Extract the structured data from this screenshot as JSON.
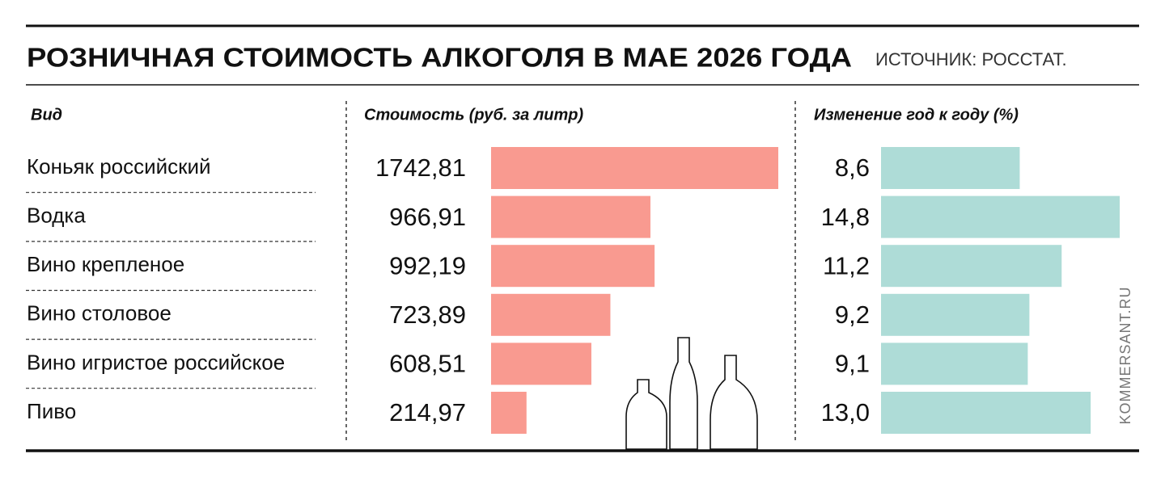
{
  "chart_data": {
    "type": "bar",
    "title": "РОЗНИЧНАЯ СТОИМОСТЬ АЛКОГОЛЯ В МАЕ 2026 ГОДА",
    "source": "ИСТОЧНИК: РОССТАТ.",
    "category_header": "Вид",
    "credit": "KOMMERSANT.RU",
    "categories": [
      "Коньяк российский",
      "Водка",
      "Вино крепленое",
      "Вино столовое",
      "Вино игристое российское",
      "Пиво"
    ],
    "series": [
      {
        "name": "Стоимость (руб. за литр)",
        "color": "#f99a90",
        "values": [
          1742.81,
          966.91,
          992.19,
          723.89,
          608.51,
          214.97
        ],
        "value_labels": [
          "1742,81",
          "966,91",
          "992,19",
          "723,89",
          "608,51",
          "214,97"
        ]
      },
      {
        "name": "Изменение год к году (%)",
        "color": "#aedcd7",
        "values": [
          8.6,
          14.8,
          11.2,
          9.2,
          9.1,
          13.0
        ],
        "value_labels": [
          "8,6",
          "14,8",
          "11,2",
          "9,2",
          "9,1",
          "13,0"
        ]
      }
    ]
  }
}
